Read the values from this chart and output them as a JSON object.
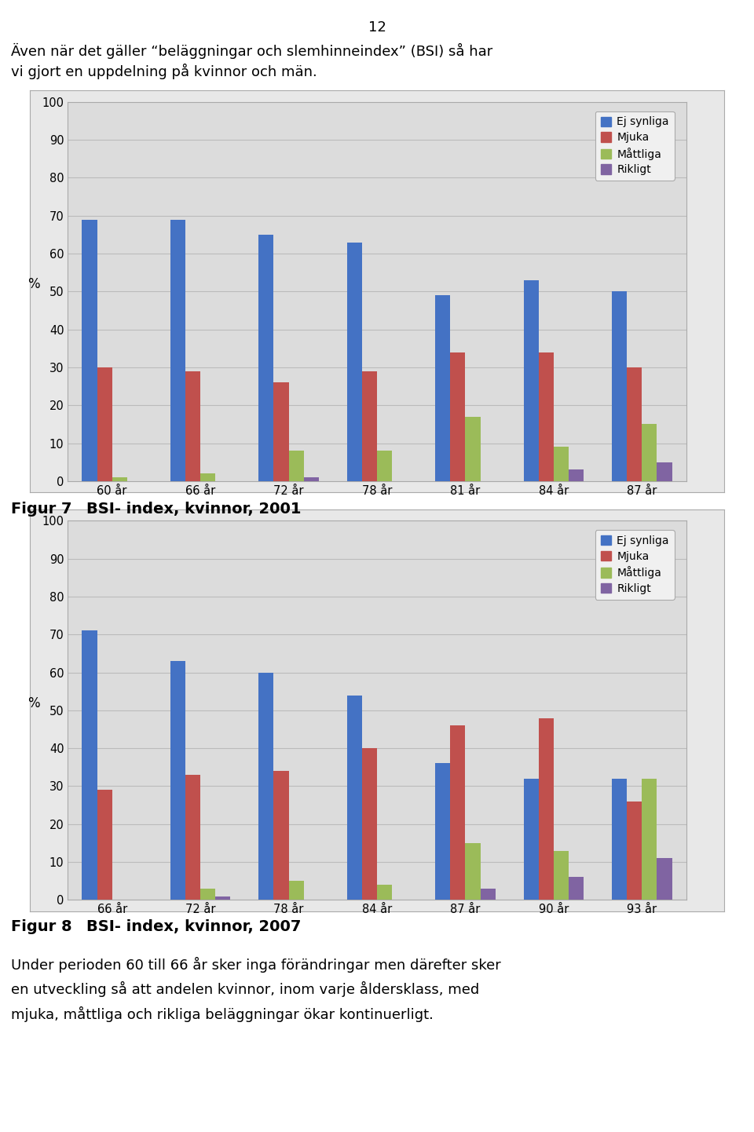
{
  "page_number": "12",
  "intro_text_line1": "Även när det gäller “beläggningar och slemhinneindex” (BSI) så har",
  "intro_text_line2": "vi gjort en uppdelning på kvinnor och män.",
  "fig1": {
    "categories": [
      "60 år",
      "66 år",
      "72 år",
      "78 år",
      "81 år",
      "84 år",
      "87 år"
    ],
    "ej_synliga": [
      69,
      69,
      65,
      63,
      49,
      53,
      50
    ],
    "mjuka": [
      30,
      29,
      26,
      29,
      34,
      34,
      30
    ],
    "mattliga": [
      1,
      2,
      8,
      8,
      17,
      9,
      15
    ],
    "rikligt": [
      0,
      0,
      1,
      0,
      0,
      3,
      5
    ],
    "ylabel": "%",
    "ylim": [
      0,
      100
    ],
    "yticks": [
      0,
      10,
      20,
      30,
      40,
      50,
      60,
      70,
      80,
      90,
      100
    ],
    "legend_labels": [
      "Ej synliga",
      "Mjuka",
      "Måttliga",
      "Rikligt"
    ],
    "bar_colors": [
      "#4472C4",
      "#C0504D",
      "#9BBB59",
      "#8064A2"
    ]
  },
  "fig1_caption_a": "Figur 7",
  "fig1_caption_b": "BSI- index, kvinnor, 2001",
  "fig2": {
    "categories": [
      "66 år",
      "72 år",
      "78 år",
      "84 år",
      "87 år",
      "90 år",
      "93 år"
    ],
    "ej_synliga": [
      71,
      63,
      60,
      54,
      36,
      32,
      32
    ],
    "mjuka": [
      29,
      33,
      34,
      40,
      46,
      48,
      26
    ],
    "mattliga": [
      0,
      3,
      5,
      4,
      15,
      13,
      32
    ],
    "rikligt": [
      0,
      1,
      0,
      0,
      3,
      6,
      11
    ],
    "ylabel": "%",
    "ylim": [
      0,
      100
    ],
    "yticks": [
      0,
      10,
      20,
      30,
      40,
      50,
      60,
      70,
      80,
      90,
      100
    ],
    "legend_labels": [
      "Ej synliga",
      "Mjuka",
      "Måttliga",
      "Rikligt"
    ],
    "bar_colors": [
      "#4472C4",
      "#C0504D",
      "#9BBB59",
      "#8064A2"
    ]
  },
  "fig2_caption_a": "Figur 8",
  "fig2_caption_b": "BSI- index, kvinnor, 2007",
  "footer_text_line1": "Under perioden 60 till 66 år sker inga förändringar men därefter sker",
  "footer_text_line2": "en utveckling så att andelen kvinnor, inom varje åldersklass, med",
  "footer_text_line3": "mjuka, måttliga och rikliga beläggningar ökar kontinuerligt.",
  "outer_bg": "#E8E8E8",
  "plot_bg": "#DCDCDC",
  "grid_color": "#BBBBBB",
  "frame_color": "#AAAAAA"
}
